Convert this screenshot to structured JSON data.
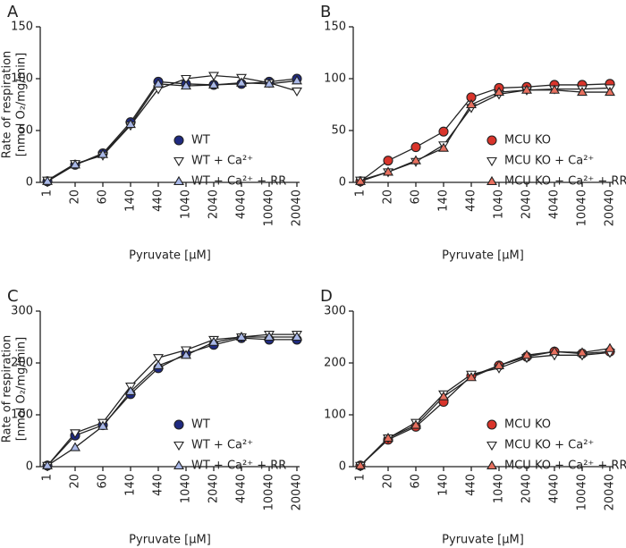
{
  "chart_data": [
    {
      "type": "line",
      "label": "A",
      "ylabel": [
        "Rate of respiration",
        "[nmol O₂/mg/min]"
      ],
      "xlabel": "Pyruvate [µM]",
      "categories": [
        "1",
        "20",
        "60",
        "140",
        "440",
        "1040",
        "2040",
        "4040",
        "10040",
        "20040"
      ],
      "ylim": [
        0,
        150
      ],
      "yticks": [
        0,
        50,
        100,
        150
      ],
      "series": [
        {
          "name": "WT",
          "color": "#1f2a80",
          "marker": "circle",
          "values": [
            1,
            17,
            28,
            58,
            97,
            95,
            94,
            95,
            97,
            100
          ]
        },
        {
          "name": "WT + Ca²⁺",
          "color": "#ffffff",
          "marker": "triangle-down",
          "values": [
            2,
            18,
            26,
            55,
            90,
            100,
            103,
            101,
            96,
            88
          ]
        },
        {
          "name": "WT + Ca²⁺ + RR",
          "color": "#a9b8e8",
          "marker": "triangle-up",
          "values": [
            1,
            17,
            27,
            56,
            95,
            93,
            94,
            96,
            95,
            98
          ]
        }
      ]
    },
    {
      "type": "line",
      "label": "B",
      "xlabel": "Pyruvate [µM]",
      "categories": [
        "1",
        "20",
        "60",
        "140",
        "440",
        "1040",
        "2040",
        "4040",
        "10040",
        "20040"
      ],
      "ylim": [
        0,
        150
      ],
      "yticks": [
        0,
        50,
        100,
        150
      ],
      "series": [
        {
          "name": "MCU KO",
          "color": "#d9342b",
          "marker": "circle",
          "values": [
            1,
            21,
            34,
            49,
            82,
            91,
            92,
            94,
            94,
            95
          ]
        },
        {
          "name": "MCU KO + Ca²⁺",
          "color": "#ffffff",
          "marker": "triangle-down",
          "values": [
            2,
            10,
            20,
            36,
            72,
            85,
            89,
            90,
            90,
            91
          ]
        },
        {
          "name": "MCU KO + Ca²⁺ + RR",
          "color": "#e8705f",
          "marker": "triangle-up",
          "values": [
            1,
            10,
            21,
            33,
            75,
            87,
            89,
            89,
            87,
            87
          ]
        }
      ]
    },
    {
      "type": "line",
      "label": "C",
      "ylabel": [
        "Rate of respiration",
        "[nmol O₂/mg/min]"
      ],
      "xlabel": "Pyruvate [µM]",
      "categories": [
        "1",
        "20",
        "60",
        "140",
        "440",
        "1040",
        "2040",
        "4040",
        "10040",
        "20040"
      ],
      "ylim": [
        0,
        300
      ],
      "yticks": [
        0,
        100,
        200,
        300
      ],
      "series": [
        {
          "name": "WT",
          "color": "#1f2a80",
          "marker": "circle",
          "values": [
            2,
            60,
            80,
            140,
            190,
            218,
            235,
            248,
            245,
            245
          ]
        },
        {
          "name": "WT + Ca²⁺",
          "color": "#ffffff",
          "marker": "triangle-down",
          "values": [
            2,
            65,
            85,
            155,
            210,
            225,
            245,
            250,
            255,
            255
          ]
        },
        {
          "name": "WT + Ca²⁺ + RR",
          "color": "#a9b8e8",
          "marker": "triangle-up",
          "values": [
            2,
            37,
            78,
            145,
            195,
            215,
            240,
            250,
            250,
            250
          ]
        }
      ]
    },
    {
      "type": "line",
      "label": "D",
      "xlabel": "Pyruvate [µM]",
      "categories": [
        "1",
        "20",
        "60",
        "140",
        "440",
        "1040",
        "2040",
        "4040",
        "10040",
        "20040"
      ],
      "ylim": [
        0,
        300
      ],
      "yticks": [
        0,
        100,
        200,
        300
      ],
      "series": [
        {
          "name": "MCU KO",
          "color": "#d9342b",
          "marker": "circle",
          "values": [
            2,
            52,
            77,
            125,
            175,
            195,
            212,
            222,
            218,
            222
          ]
        },
        {
          "name": "MCU KO + Ca²⁺",
          "color": "#ffffff",
          "marker": "triangle-down",
          "values": [
            2,
            55,
            85,
            140,
            178,
            190,
            210,
            215,
            215,
            220
          ]
        },
        {
          "name": "MCU KO + Ca²⁺ + RR",
          "color": "#e8705f",
          "marker": "triangle-up",
          "values": [
            2,
            55,
            80,
            135,
            172,
            195,
            215,
            222,
            220,
            228
          ]
        }
      ]
    }
  ]
}
